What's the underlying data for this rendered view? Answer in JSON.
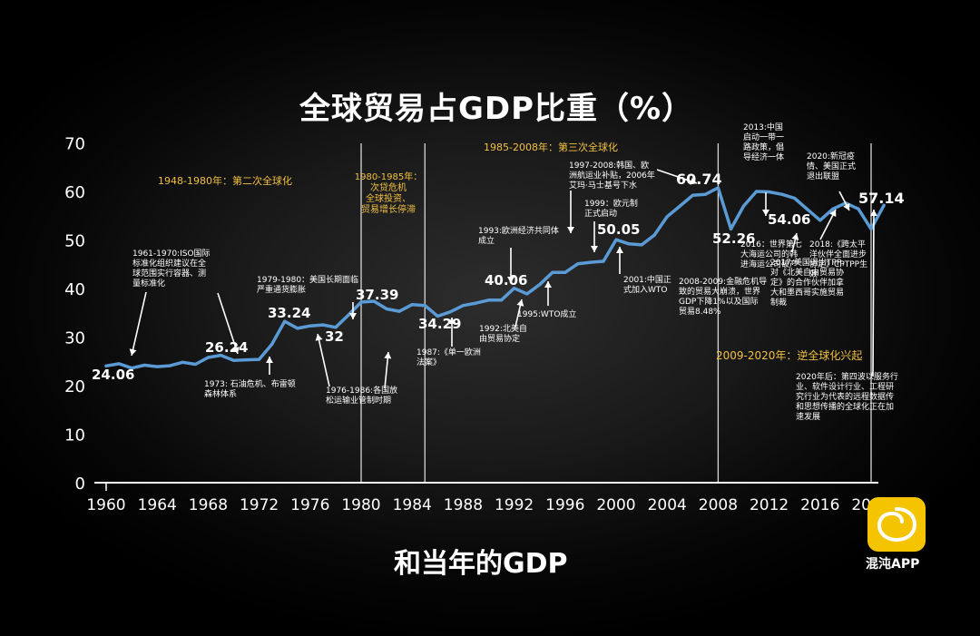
{
  "title": "全球贸易占GDP比重（%）",
  "subtitle": "和当年的GDP",
  "watermark": "混沌APP",
  "colors": {
    "line": "#5b9bd5",
    "axis": "#ffffff",
    "period": "#f0c040",
    "logo": "#f5c400"
  },
  "chart_data": {
    "type": "line",
    "title": "全球贸易占GDP比重（%）",
    "xlabel": "",
    "ylabel": "",
    "xlim": [
      1960,
      2021
    ],
    "ylim": [
      0,
      70
    ],
    "grid": false,
    "yticks": [
      0,
      10,
      20,
      30,
      40,
      50,
      60,
      70
    ],
    "xticks": [
      "1960",
      "1964",
      "1968",
      "1972",
      "1976",
      "1980",
      "1984",
      "1988",
      "1992",
      "1996",
      "2000",
      "2004",
      "2008",
      "2012",
      "2016",
      "2020"
    ],
    "x": [
      1960,
      1961,
      1962,
      1963,
      1964,
      1965,
      1966,
      1967,
      1968,
      1969,
      1970,
      1971,
      1972,
      1973,
      1974,
      1975,
      1976,
      1977,
      1978,
      1979,
      1980,
      1981,
      1982,
      1983,
      1984,
      1985,
      1986,
      1987,
      1988,
      1989,
      1990,
      1991,
      1992,
      1993,
      1994,
      1995,
      1996,
      1997,
      1998,
      1999,
      2000,
      2001,
      2002,
      2003,
      2004,
      2005,
      2006,
      2007,
      2008,
      2009,
      2010,
      2011,
      2012,
      2013,
      2014,
      2015,
      2016,
      2017,
      2018,
      2019,
      2020,
      2021
    ],
    "values": [
      24.06,
      24.5,
      23.6,
      24.2,
      23.9,
      24.1,
      24.8,
      24.4,
      25.8,
      26.24,
      25.2,
      25.3,
      25.4,
      28.5,
      33.24,
      31.8,
      32.3,
      32.5,
      32.0,
      34.5,
      37.2,
      37.39,
      35.8,
      35.3,
      36.7,
      36.5,
      34.29,
      35.2,
      36.5,
      37.0,
      37.6,
      37.6,
      40.06,
      38.9,
      40.8,
      43.3,
      43.3,
      45.1,
      45.4,
      45.6,
      50.05,
      49.2,
      49.0,
      51.0,
      54.8,
      57.0,
      59.2,
      59.4,
      60.74,
      52.26,
      57.0,
      60.0,
      59.9,
      59.4,
      58.6,
      56.3,
      54.06,
      56.4,
      57.6,
      56.4,
      52.26,
      57.14
    ],
    "point_labels": [
      {
        "x": 1960,
        "text": "24.06"
      },
      {
        "x": 1969,
        "text": "26.24"
      },
      {
        "x": 1974,
        "text": "33.24"
      },
      {
        "x": 1978,
        "text": "32"
      },
      {
        "x": 1981,
        "text": "37.39"
      },
      {
        "x": 1986,
        "text": "34.29"
      },
      {
        "x": 1992,
        "text": "40.06"
      },
      {
        "x": 2000,
        "text": "50.05"
      },
      {
        "x": 2008,
        "text": "60.74"
      },
      {
        "x": 2009,
        "text": "52.26"
      },
      {
        "x": 2016,
        "text": "54.06"
      },
      {
        "x": 2021,
        "text": "57.14"
      }
    ],
    "period_lines": [
      1980,
      1985,
      2008,
      2020
    ],
    "periods": [
      {
        "text": "1948-1980年：第二次全球化"
      },
      {
        "text": "1980-1985年：次贷危机 全球投资、贸易增长停滞"
      },
      {
        "text": "1985-2008年：第三次全球化"
      },
      {
        "text": "2009-2020年：逆全球化兴起"
      }
    ],
    "annotations": [
      {
        "text": "1961-1970:ISO国际标准化组织建议在全球范围实行容器、测量标准化"
      },
      {
        "text": "1973：石油危机、布雷顿森林体系"
      },
      {
        "text": "1979-1980：美国长期面临严重通货膨胀"
      },
      {
        "text": "1976-1986:各国放松运输业管制时期"
      },
      {
        "text": "1987：《单一欧洲法案》"
      },
      {
        "text": "1993:欧洲经济共同体成立"
      },
      {
        "text": "1992:北美自由贸易协定"
      },
      {
        "text": "1995:WTO成立"
      },
      {
        "text": "1997-2008:韩国、欧洲航运业补贴，2006年艾玛·马士基号下水"
      },
      {
        "text": "1999：欧元制正式启动"
      },
      {
        "text": "2001:中国正式加入WTO"
      },
      {
        "text": "2008-2009:金融危机导致的贸易大崩溃，世界GDP下降1%以及国际贸易8.48%"
      },
      {
        "text": "2013:中国启动一带一路政策，倡导经济一体"
      },
      {
        "text": "2016：世界第七大海运公司的韩进海运公司破产"
      },
      {
        "text": "2017:美国退出TPP，对《北美自由贸易协定》的合作伙伴加拿大和墨西哥实施贸易制裁"
      },
      {
        "text": "2018:《跨太平洋伙伴全面进步协定》CPTPP生效"
      },
      {
        "text": "2020:新冠疫情、美国正式退出联盟"
      },
      {
        "text": "2020年后：第四波以服务行业、软件设计行业、工程研究行业为代表的远程数据传和思想传播的全球化正在加速发展"
      }
    ]
  }
}
